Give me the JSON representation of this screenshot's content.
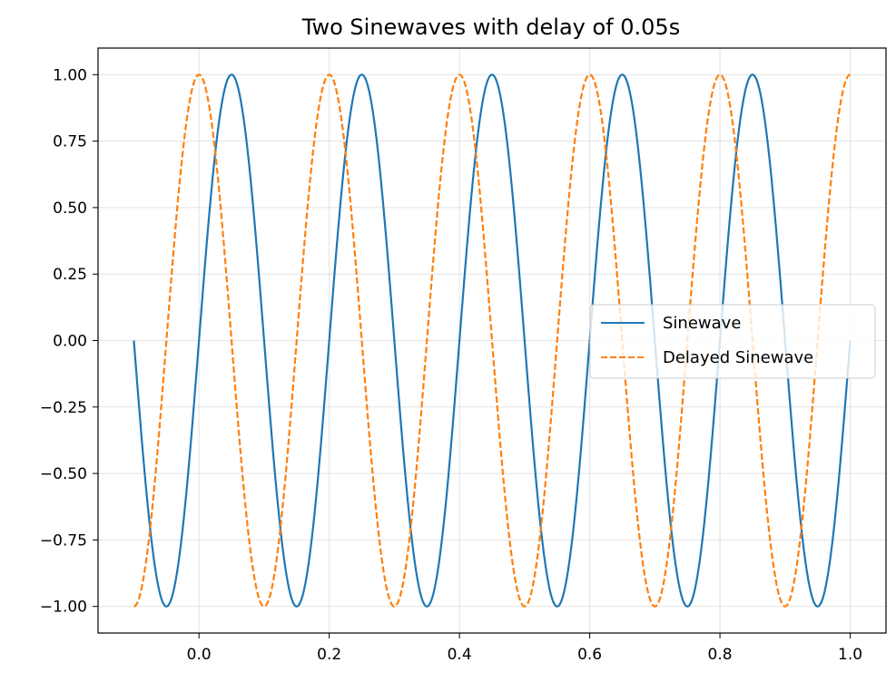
{
  "chart_data": {
    "type": "line",
    "title": "Two Sinewaves with delay of 0.05s",
    "xlabel": "",
    "ylabel": "",
    "xlim": [
      -0.155,
      1.055
    ],
    "ylim": [
      -1.1,
      1.1
    ],
    "xticks": [
      0.0,
      0.2,
      0.4,
      0.6,
      0.8,
      1.0
    ],
    "xtick_labels": [
      "0.0",
      "0.2",
      "0.4",
      "0.6",
      "0.8",
      "1.0"
    ],
    "yticks": [
      1.0,
      0.75,
      0.5,
      0.25,
      0.0,
      -0.25,
      -0.5,
      -0.75,
      -1.0
    ],
    "ytick_labels": [
      "1.00",
      "0.75",
      "0.50",
      "0.25",
      "0.00",
      "−0.25",
      "−0.50",
      "−0.75",
      "−1.00"
    ],
    "grid": true,
    "legend_position": "center-right",
    "series": [
      {
        "name": "Sinewave",
        "color": "#1f77b4",
        "style": "solid",
        "function": "sin",
        "frequency_hz": 5,
        "amplitude": 1,
        "x_start": -0.1,
        "x_end": 1.0,
        "delay_s": 0
      },
      {
        "name": "Delayed Sinewave",
        "color": "#ff7f0e",
        "style": "dashed",
        "function": "sin",
        "frequency_hz": 5,
        "amplitude": 1,
        "x_start": -0.1,
        "x_end": 1.0,
        "delay_s": 0.05
      }
    ]
  }
}
